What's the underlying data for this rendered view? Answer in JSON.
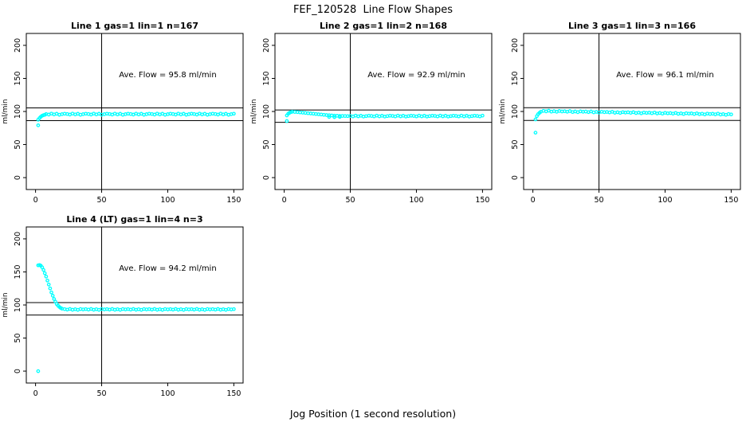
{
  "figure": {
    "title": "FEF_120528  Line Flow Shapes",
    "xlabel": "Jog Position (1 second resolution)",
    "ylabel": "ml/min",
    "background": "#ffffff",
    "point_color": "#00ffff",
    "axis_color": "#000000"
  },
  "chart_data": [
    {
      "type": "scatter",
      "title": "Line 1 gas=1 lin=1 n=167",
      "annotation": "Ave. Flow =  95.8  ml/min",
      "ave_flow_ml_min": 95.8,
      "gas": 1,
      "lin": 1,
      "n": 167,
      "xticks": [
        0,
        50,
        100,
        150
      ],
      "yticks": [
        0,
        50,
        100,
        150,
        200
      ],
      "xlim": [
        -7,
        157
      ],
      "ylim": [
        -18,
        218
      ],
      "vline_x": 50,
      "hlines_y": [
        105.4,
        86.2
      ],
      "annotation_xy": [
        100,
        152
      ],
      "points": [
        [
          2,
          79
        ],
        [
          2,
          87.5
        ],
        [
          3,
          90
        ],
        [
          4,
          92
        ],
        [
          5,
          93.5
        ],
        [
          6,
          94.5
        ],
        [
          7,
          95
        ],
        [
          8,
          96.2
        ],
        [
          10,
          95.3
        ],
        [
          12,
          96.7
        ],
        [
          14,
          95.6
        ],
        [
          16,
          96.5
        ],
        [
          18,
          95.1
        ],
        [
          20,
          95.9
        ],
        [
          22,
          96.6
        ],
        [
          24,
          96.2
        ],
        [
          26,
          95.3
        ],
        [
          28,
          96.7
        ],
        [
          30,
          95.6
        ],
        [
          32,
          96.5
        ],
        [
          34,
          95.1
        ],
        [
          36,
          95.9
        ],
        [
          38,
          96.6
        ],
        [
          40,
          96.2
        ],
        [
          42,
          95.3
        ],
        [
          44,
          96.7
        ],
        [
          46,
          95.6
        ],
        [
          48,
          96.5
        ],
        [
          50,
          95.1
        ],
        [
          52,
          95.9
        ],
        [
          54,
          96.6
        ],
        [
          56,
          96.2
        ],
        [
          58,
          95.3
        ],
        [
          60,
          96.7
        ],
        [
          62,
          95.6
        ],
        [
          64,
          96.5
        ],
        [
          66,
          95.1
        ],
        [
          68,
          95.9
        ],
        [
          70,
          96.6
        ],
        [
          72,
          96.2
        ],
        [
          74,
          95.3
        ],
        [
          76,
          96.7
        ],
        [
          78,
          95.6
        ],
        [
          80,
          96.5
        ],
        [
          82,
          95.1
        ],
        [
          84,
          95.9
        ],
        [
          86,
          96.6
        ],
        [
          88,
          96.2
        ],
        [
          90,
          95.3
        ],
        [
          92,
          96.7
        ],
        [
          94,
          95.6
        ],
        [
          96,
          96.5
        ],
        [
          98,
          95.1
        ],
        [
          100,
          95.9
        ],
        [
          102,
          96.6
        ],
        [
          104,
          96.2
        ],
        [
          106,
          95.3
        ],
        [
          108,
          96.7
        ],
        [
          110,
          95.6
        ],
        [
          112,
          96.5
        ],
        [
          114,
          95.1
        ],
        [
          116,
          95.9
        ],
        [
          118,
          96.6
        ],
        [
          120,
          96.2
        ],
        [
          122,
          95.3
        ],
        [
          124,
          96.7
        ],
        [
          126,
          95.6
        ],
        [
          128,
          96.5
        ],
        [
          130,
          95.1
        ],
        [
          132,
          95.9
        ],
        [
          134,
          96.6
        ],
        [
          136,
          96.2
        ],
        [
          138,
          95.3
        ],
        [
          140,
          96.7
        ],
        [
          142,
          95.6
        ],
        [
          144,
          96.5
        ],
        [
          146,
          95.1
        ],
        [
          148,
          95.9
        ],
        [
          150,
          96.6
        ]
      ]
    },
    {
      "type": "scatter",
      "title": "Line 2 gas=1 lin=2 n=168",
      "annotation": "Ave. Flow =  92.9  ml/min",
      "ave_flow_ml_min": 92.9,
      "gas": 1,
      "lin": 2,
      "n": 168,
      "xticks": [
        0,
        50,
        100,
        150
      ],
      "yticks": [
        0,
        50,
        100,
        150,
        200
      ],
      "xlim": [
        -7,
        157
      ],
      "ylim": [
        -18,
        218
      ],
      "vline_x": 50,
      "hlines_y": [
        102.2,
        83.6
      ],
      "annotation_xy": [
        100,
        152
      ],
      "points": [
        [
          2,
          85.5
        ],
        [
          2,
          94
        ],
        [
          3,
          96.5
        ],
        [
          4,
          98
        ],
        [
          5,
          99
        ],
        [
          6,
          99.5
        ],
        [
          8,
          99.3
        ],
        [
          10,
          99
        ],
        [
          12,
          98.6
        ],
        [
          14,
          98.2
        ],
        [
          16,
          97.8
        ],
        [
          18,
          97.4
        ],
        [
          20,
          97
        ],
        [
          22,
          96.6
        ],
        [
          24,
          96.2
        ],
        [
          26,
          95.8
        ],
        [
          28,
          95.4
        ],
        [
          30,
          95
        ],
        [
          32,
          94.6
        ],
        [
          34,
          94.3
        ],
        [
          36,
          94
        ],
        [
          38,
          93.7
        ],
        [
          40,
          93.5
        ],
        [
          42,
          93.3
        ],
        [
          44,
          93.2
        ],
        [
          46,
          93.1
        ],
        [
          48,
          93
        ],
        [
          34,
          91.8
        ],
        [
          38,
          91.4
        ],
        [
          42,
          91.7
        ],
        [
          50,
          93.2
        ],
        [
          52,
          92.5
        ],
        [
          54,
          93.7
        ],
        [
          56,
          92.7
        ],
        [
          58,
          93.5
        ],
        [
          60,
          92.3
        ],
        [
          62,
          93
        ],
        [
          64,
          93.6
        ],
        [
          66,
          93.2
        ],
        [
          68,
          92.5
        ],
        [
          70,
          93.7
        ],
        [
          72,
          92.7
        ],
        [
          74,
          93.5
        ],
        [
          76,
          92.3
        ],
        [
          78,
          93
        ],
        [
          80,
          93.6
        ],
        [
          82,
          93.2
        ],
        [
          84,
          92.5
        ],
        [
          86,
          93.7
        ],
        [
          88,
          92.7
        ],
        [
          90,
          93.5
        ],
        [
          92,
          92.3
        ],
        [
          94,
          93
        ],
        [
          96,
          93.6
        ],
        [
          98,
          93.2
        ],
        [
          100,
          92.5
        ],
        [
          102,
          93.7
        ],
        [
          104,
          92.7
        ],
        [
          106,
          93.5
        ],
        [
          108,
          92.3
        ],
        [
          110,
          93
        ],
        [
          112,
          93.6
        ],
        [
          114,
          93.2
        ],
        [
          116,
          92.5
        ],
        [
          118,
          93.7
        ],
        [
          120,
          92.7
        ],
        [
          122,
          93.5
        ],
        [
          124,
          92.3
        ],
        [
          126,
          93
        ],
        [
          128,
          93.6
        ],
        [
          130,
          93.2
        ],
        [
          132,
          92.5
        ],
        [
          134,
          93.7
        ],
        [
          136,
          92.7
        ],
        [
          138,
          93.5
        ],
        [
          140,
          92.3
        ],
        [
          142,
          93
        ],
        [
          144,
          93.6
        ],
        [
          146,
          93.2
        ],
        [
          148,
          92.5
        ],
        [
          150,
          93.7
        ]
      ]
    },
    {
      "type": "scatter",
      "title": "Line 3 gas=1 lin=3 n=166",
      "annotation": "Ave. Flow =  96.1  ml/min",
      "ave_flow_ml_min": 96.1,
      "gas": 1,
      "lin": 3,
      "n": 166,
      "xticks": [
        0,
        50,
        100,
        150
      ],
      "yticks": [
        0,
        50,
        100,
        150,
        200
      ],
      "xlim": [
        -7,
        157
      ],
      "ylim": [
        -18,
        218
      ],
      "vline_x": 50,
      "hlines_y": [
        105.7,
        86.5
      ],
      "annotation_xy": [
        100,
        152
      ],
      "points": [
        [
          2,
          68
        ],
        [
          2,
          88
        ],
        [
          3,
          93
        ],
        [
          4,
          96
        ],
        [
          5,
          98
        ],
        [
          6,
          99.5
        ],
        [
          8,
          101
        ],
        [
          10,
          100.1
        ],
        [
          12,
          101.2
        ],
        [
          14,
          99.8
        ],
        [
          16,
          100.5
        ],
        [
          18,
          99.5
        ],
        [
          20,
          100.7
        ],
        [
          22,
          100
        ],
        [
          24,
          100.4
        ],
        [
          26,
          99.6
        ],
        [
          28,
          100.6
        ],
        [
          30,
          99.2
        ],
        [
          32,
          100
        ],
        [
          34,
          98.9
        ],
        [
          36,
          100.1
        ],
        [
          38,
          99.5
        ],
        [
          40,
          99.9
        ],
        [
          42,
          99
        ],
        [
          44,
          100
        ],
        [
          46,
          98.7
        ],
        [
          48,
          99.4
        ],
        [
          50,
          98.3
        ],
        [
          52,
          99.6
        ],
        [
          54,
          98.9
        ],
        [
          56,
          99.3
        ],
        [
          58,
          98.5
        ],
        [
          60,
          99.5
        ],
        [
          62,
          98.1
        ],
        [
          64,
          98.8
        ],
        [
          66,
          97.8
        ],
        [
          68,
          99
        ],
        [
          70,
          98.3
        ],
        [
          72,
          98.8
        ],
        [
          74,
          97.9
        ],
        [
          76,
          98.9
        ],
        [
          78,
          97.6
        ],
        [
          80,
          98.3
        ],
        [
          82,
          97.2
        ],
        [
          84,
          98.4
        ],
        [
          86,
          97.8
        ],
        [
          88,
          98.2
        ],
        [
          90,
          97.3
        ],
        [
          92,
          98.4
        ],
        [
          94,
          97
        ],
        [
          96,
          97.7
        ],
        [
          98,
          96.7
        ],
        [
          100,
          97.9
        ],
        [
          102,
          97.2
        ],
        [
          104,
          97.6
        ],
        [
          106,
          96.8
        ],
        [
          108,
          97.8
        ],
        [
          110,
          96.4
        ],
        [
          112,
          97.2
        ],
        [
          114,
          96.1
        ],
        [
          116,
          97.3
        ],
        [
          118,
          96.7
        ],
        [
          120,
          97.1
        ],
        [
          122,
          96.2
        ],
        [
          124,
          97.2
        ],
        [
          126,
          95.9
        ],
        [
          128,
          96.6
        ],
        [
          130,
          95.5
        ],
        [
          132,
          96.8
        ],
        [
          134,
          96.1
        ],
        [
          136,
          96.5
        ],
        [
          138,
          95.7
        ],
        [
          140,
          96.7
        ],
        [
          142,
          95.3
        ],
        [
          144,
          96
        ],
        [
          146,
          95
        ],
        [
          148,
          96.2
        ],
        [
          150,
          95.5
        ]
      ]
    },
    {
      "type": "scatter",
      "title": "Line 4 (LT) gas=1 lin=4 n=3",
      "annotation": "Ave. Flow =  94.2  ml/min",
      "ave_flow_ml_min": 94.2,
      "gas": 1,
      "lin": 4,
      "n": 3,
      "xticks": [
        0,
        50,
        100,
        150
      ],
      "yticks": [
        0,
        50,
        100,
        150,
        200
      ],
      "xlim": [
        -7,
        157
      ],
      "ylim": [
        -18,
        218
      ],
      "vline_x": 50,
      "hlines_y": [
        103.6,
        84.8
      ],
      "annotation_xy": [
        100,
        152
      ],
      "points": [
        [
          2,
          0
        ],
        [
          2,
          160
        ],
        [
          3,
          160.5
        ],
        [
          4,
          159.5
        ],
        [
          5,
          157
        ],
        [
          6,
          153
        ],
        [
          7,
          148
        ],
        [
          8,
          143
        ],
        [
          9,
          137
        ],
        [
          10,
          131
        ],
        [
          11,
          125
        ],
        [
          12,
          119
        ],
        [
          13,
          114
        ],
        [
          14,
          109
        ],
        [
          15,
          105
        ],
        [
          16,
          101.5
        ],
        [
          17,
          99
        ],
        [
          18,
          97
        ],
        [
          19,
          95.5
        ],
        [
          20,
          94.5
        ],
        [
          22,
          93.7
        ],
        [
          24,
          93
        ],
        [
          26,
          94
        ],
        [
          28,
          92.8
        ],
        [
          30,
          93.6
        ],
        [
          32,
          92.7
        ],
        [
          34,
          93.8
        ],
        [
          36,
          93.3
        ],
        [
          38,
          93.7
        ],
        [
          40,
          93
        ],
        [
          42,
          94
        ],
        [
          44,
          92.8
        ],
        [
          46,
          93.6
        ],
        [
          48,
          92.7
        ],
        [
          50,
          93.8
        ],
        [
          52,
          93.3
        ],
        [
          54,
          93.7
        ],
        [
          56,
          93
        ],
        [
          58,
          94
        ],
        [
          60,
          92.8
        ],
        [
          62,
          93.6
        ],
        [
          64,
          92.7
        ],
        [
          66,
          93.8
        ],
        [
          68,
          93.3
        ],
        [
          70,
          93.7
        ],
        [
          72,
          93
        ],
        [
          74,
          94
        ],
        [
          76,
          92.8
        ],
        [
          78,
          93.6
        ],
        [
          80,
          92.7
        ],
        [
          82,
          93.8
        ],
        [
          84,
          93.3
        ],
        [
          86,
          93.7
        ],
        [
          88,
          93
        ],
        [
          90,
          94
        ],
        [
          92,
          92.8
        ],
        [
          94,
          93.6
        ],
        [
          96,
          92.7
        ],
        [
          98,
          93.8
        ],
        [
          100,
          93.3
        ],
        [
          102,
          93.7
        ],
        [
          104,
          93
        ],
        [
          106,
          94
        ],
        [
          108,
          92.8
        ],
        [
          110,
          93.6
        ],
        [
          112,
          92.7
        ],
        [
          114,
          93.8
        ],
        [
          116,
          93.3
        ],
        [
          118,
          93.7
        ],
        [
          120,
          93
        ],
        [
          122,
          94
        ],
        [
          124,
          92.8
        ],
        [
          126,
          93.6
        ],
        [
          128,
          92.7
        ],
        [
          130,
          93.8
        ],
        [
          132,
          93.3
        ],
        [
          134,
          93.7
        ],
        [
          136,
          93
        ],
        [
          138,
          94
        ],
        [
          140,
          92.8
        ],
        [
          142,
          93.6
        ],
        [
          144,
          92.7
        ],
        [
          146,
          93.8
        ],
        [
          148,
          93.3
        ],
        [
          150,
          93.7
        ]
      ]
    }
  ]
}
